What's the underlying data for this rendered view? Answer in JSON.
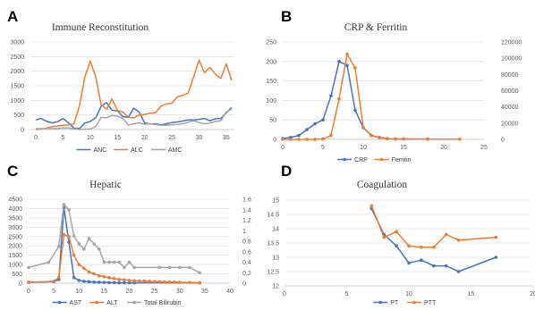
{
  "chart_data": [
    {
      "panel": "A",
      "type": "line",
      "title": "Immune Reconstitution",
      "x_ticks": [
        0,
        5,
        10,
        15,
        20,
        25,
        30,
        35
      ],
      "y_ticks": [
        0,
        500,
        1000,
        1500,
        2000,
        2500,
        3000
      ],
      "xlim": [
        -1,
        36.5
      ],
      "ylim": [
        0,
        3000
      ],
      "grid": true,
      "legend_position": "bottom",
      "series": [
        {
          "name": "ANC",
          "color": "#4472c4",
          "marker": "none",
          "x": [
            0,
            1,
            2,
            3,
            4,
            5,
            6,
            7,
            8,
            9,
            10,
            11,
            12,
            13,
            14,
            15,
            16,
            17,
            18,
            19,
            20,
            21,
            22,
            23,
            24,
            25,
            26,
            27,
            28,
            29,
            30,
            31,
            32,
            33,
            34,
            35,
            36
          ],
          "y": [
            330,
            380,
            280,
            230,
            270,
            380,
            230,
            50,
            30,
            220,
            280,
            400,
            800,
            920,
            660,
            640,
            440,
            420,
            730,
            600,
            220,
            190,
            200,
            160,
            200,
            240,
            260,
            290,
            330,
            330,
            350,
            380,
            300,
            370,
            380,
            570,
            760
          ]
        },
        {
          "name": "ALC",
          "color": "#ed7d31",
          "marker": "none",
          "x": [
            0,
            1,
            2,
            3,
            4,
            5,
            6,
            7,
            8,
            9,
            10,
            11,
            12,
            13,
            14,
            15,
            16,
            17,
            18,
            19,
            20,
            21,
            22,
            23,
            24,
            25,
            26,
            27,
            28,
            29,
            30,
            31,
            32,
            33,
            34,
            35,
            36
          ],
          "y": [
            0,
            20,
            50,
            100,
            120,
            150,
            160,
            200,
            800,
            1800,
            2350,
            1800,
            850,
            700,
            1050,
            650,
            600,
            420,
            400,
            500,
            520,
            560,
            580,
            800,
            880,
            900,
            1120,
            1170,
            1250,
            1800,
            2380,
            1950,
            2130,
            1900,
            1750,
            2250,
            1680
          ]
        },
        {
          "name": "AMC",
          "color": "#a5a5a5",
          "marker": "none",
          "x": [
            0,
            1,
            2,
            3,
            4,
            5,
            6,
            7,
            8,
            9,
            10,
            11,
            12,
            13,
            14,
            15,
            16,
            17,
            18,
            19,
            20,
            21,
            22,
            23,
            24,
            25,
            26,
            27,
            28,
            29,
            30,
            31,
            32,
            33,
            34,
            35,
            36
          ],
          "y": [
            30,
            30,
            40,
            30,
            40,
            50,
            50,
            30,
            0,
            10,
            20,
            100,
            420,
            400,
            480,
            460,
            390,
            150,
            200,
            230,
            180,
            200,
            170,
            140,
            150,
            160,
            170,
            200,
            250,
            300,
            240,
            200,
            220,
            280,
            300,
            600,
            700
          ]
        }
      ]
    },
    {
      "panel": "B",
      "type": "line",
      "title": "CRP & Ferritin",
      "x_ticks": [
        0,
        5,
        10,
        15,
        20,
        25
      ],
      "y_ticks": [
        0,
        50,
        100,
        150,
        200,
        250
      ],
      "y2_ticks": [
        0,
        20000,
        40000,
        60000,
        80000,
        100000,
        120000
      ],
      "xlim": [
        0,
        25
      ],
      "ylim": [
        0,
        250
      ],
      "y2lim": [
        0,
        120000
      ],
      "grid": true,
      "legend_position": "bottom",
      "series": [
        {
          "name": "CRP",
          "color": "#4472c4",
          "marker": "circle",
          "axis": "left",
          "x": [
            0,
            1,
            2,
            3,
            4,
            5,
            6,
            7,
            8,
            9,
            10,
            11,
            12,
            13,
            14,
            15,
            18
          ],
          "y": [
            2,
            5,
            10,
            25,
            40,
            50,
            112,
            200,
            190,
            75,
            30,
            10,
            5,
            2,
            1,
            1,
            1
          ]
        },
        {
          "name": "Ferritin",
          "color": "#ed7d31",
          "marker": "circle",
          "axis": "right",
          "x": [
            0,
            1,
            2,
            3,
            4,
            5,
            6,
            7,
            8,
            9,
            10,
            11,
            12,
            13,
            14,
            15,
            18,
            22
          ],
          "y": [
            0,
            0,
            0,
            0,
            0,
            500,
            5000,
            50000,
            105000,
            88000,
            15000,
            5000,
            2000,
            1000,
            500,
            500,
            300,
            300
          ]
        }
      ]
    },
    {
      "panel": "C",
      "type": "line",
      "title": "Hepatic",
      "x_ticks": [
        0,
        5,
        10,
        15,
        20,
        25,
        30,
        35,
        40
      ],
      "y_ticks": [
        0,
        500,
        1000,
        1500,
        2000,
        2500,
        3000,
        3500,
        4000,
        4500
      ],
      "y2_ticks": [
        "0",
        "0.2",
        "0.4",
        "0.6",
        "0.8",
        "1",
        "1.2",
        "1.4",
        "1.6"
      ],
      "xlim": [
        0,
        40
      ],
      "ylim": [
        0,
        4500
      ],
      "y2lim": [
        0,
        1.6
      ],
      "grid": true,
      "legend_position": "bottom",
      "series": [
        {
          "name": "AST",
          "color": "#4472c4",
          "marker": "circle",
          "axis": "left",
          "x": [
            0,
            5,
            6,
            7,
            8,
            9,
            10,
            11,
            12,
            13,
            14,
            15,
            16,
            17,
            18,
            19,
            20,
            21,
            34
          ],
          "y": [
            50,
            80,
            200,
            4050,
            2200,
            300,
            150,
            100,
            80,
            60,
            50,
            40,
            30,
            30,
            20,
            20,
            20,
            20,
            20
          ]
        },
        {
          "name": "ALT",
          "color": "#ed7d31",
          "marker": "circle",
          "axis": "left",
          "x": [
            0,
            5,
            6,
            7,
            8,
            9,
            10,
            11,
            12,
            13,
            14,
            15,
            16,
            17,
            18,
            19,
            20,
            21,
            22,
            23,
            24,
            25,
            26,
            27,
            28,
            29,
            30,
            32,
            34
          ],
          "y": [
            50,
            100,
            300,
            2600,
            2500,
            1500,
            1000,
            800,
            600,
            500,
            400,
            350,
            300,
            250,
            200,
            180,
            150,
            130,
            120,
            110,
            100,
            90,
            80,
            70,
            60,
            60,
            50,
            40,
            30
          ]
        },
        {
          "name": "Total Bilirubin",
          "color": "#a5a5a5",
          "marker": "circle",
          "axis": "right",
          "x": [
            0,
            4,
            6,
            7,
            8,
            9,
            10,
            11,
            12,
            13,
            14,
            15,
            16,
            17,
            18,
            19,
            20,
            21,
            26,
            28,
            30,
            32,
            34
          ],
          "y": [
            0.3,
            0.4,
            0.7,
            1.5,
            1.4,
            0.9,
            0.75,
            0.65,
            0.85,
            0.75,
            0.65,
            0.4,
            0.4,
            0.4,
            0.4,
            0.3,
            0.4,
            0.3,
            0.3,
            0.3,
            0.3,
            0.3,
            0.2
          ]
        }
      ]
    },
    {
      "panel": "D",
      "type": "line",
      "title": "Coagulation",
      "x_ticks": [
        0,
        5,
        10,
        15,
        20
      ],
      "y_ticks": [
        "12",
        "12.5",
        "13",
        "13.5",
        "14",
        "14.5",
        "15"
      ],
      "xlim": [
        0,
        20
      ],
      "ylim": [
        12,
        15
      ],
      "grid": true,
      "legend_position": "bottom",
      "series": [
        {
          "name": "PT",
          "color": "#4472c4",
          "marker": "circle",
          "axis": "left",
          "x": [
            7,
            8,
            9,
            10,
            11,
            12,
            13,
            14,
            17
          ],
          "y": [
            14.7,
            13.8,
            13.4,
            12.8,
            12.9,
            12.7,
            12.7,
            12.5,
            13.0
          ]
        },
        {
          "name": "PTT",
          "color": "#ed7d31",
          "marker": "circle",
          "axis": "left",
          "x": [
            7,
            8,
            9,
            10,
            11,
            12,
            13,
            14,
            17
          ],
          "y": [
            14.8,
            13.7,
            13.9,
            13.4,
            13.35,
            13.35,
            13.8,
            13.6,
            13.7
          ]
        }
      ]
    }
  ]
}
